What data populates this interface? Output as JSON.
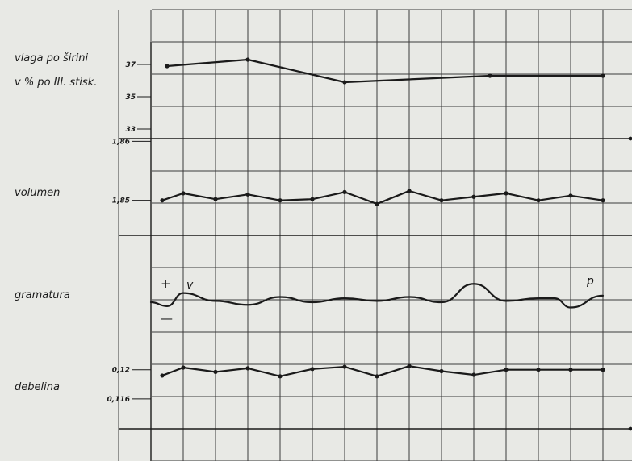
{
  "chart_data": [
    {
      "type": "line",
      "label_lines": [
        "vlaga po širini",
        "v % po III. stisk."
      ],
      "ticks": [
        "37",
        "35",
        "33"
      ],
      "tick_values": [
        37,
        35,
        33
      ],
      "ylim": [
        32,
        38
      ],
      "grid": true,
      "series": [
        {
          "values": [
            36.9,
            null,
            37.3,
            null,
            null,
            35.9,
            null,
            null,
            null,
            36.3,
            null,
            null,
            null,
            36.3
          ]
        }
      ]
    },
    {
      "type": "line",
      "label_lines": [
        "volumen"
      ],
      "ticks": [
        "1,86",
        "1,85"
      ],
      "tick_values": [
        1.86,
        1.85
      ],
      "ylim": [
        1.846,
        1.861
      ],
      "grid": true,
      "series": [
        {
          "values": [
            1.85,
            1.8512,
            1.8502,
            1.851,
            1.85,
            1.8502,
            1.8514,
            1.8494,
            1.8516,
            1.85,
            1.8506,
            1.8512,
            1.85,
            1.8508,
            1.85
          ]
        }
      ]
    },
    {
      "type": "line",
      "label_lines": [
        "gramatura"
      ],
      "ticks": [],
      "ylim": [
        -4,
        4
      ],
      "grid": true,
      "annotations": {
        "plus": "+",
        "minus": "—",
        "v": "v",
        "p": "p"
      },
      "series": [
        {
          "values": [
            0,
            -0.3,
            0.7,
            0.1,
            -0.2,
            0.4,
            0.0,
            0.3,
            0.1,
            0.4,
            0.0,
            1.4,
            0.1,
            0.3,
            0.3,
            -0.4,
            0.5
          ]
        }
      ]
    },
    {
      "type": "line",
      "label_lines": [
        "debelina"
      ],
      "ticks": [
        "0,12",
        "0,116"
      ],
      "tick_values": [
        0.12,
        0.116
      ],
      "ylim": [
        0.113,
        0.1245
      ],
      "grid": true,
      "series": [
        {
          "values": [
            0.1192,
            0.1203,
            0.1197,
            0.1202,
            0.1191,
            0.1201,
            0.1204,
            0.1191,
            0.1205,
            0.1198,
            0.1193,
            0.12,
            0.12,
            0.12,
            0.12,
            0.12
          ]
        }
      ]
    }
  ],
  "colors": {
    "background": "#e8e9e5",
    "grid": "#3a3a3a",
    "line": "#1a1a1a"
  }
}
